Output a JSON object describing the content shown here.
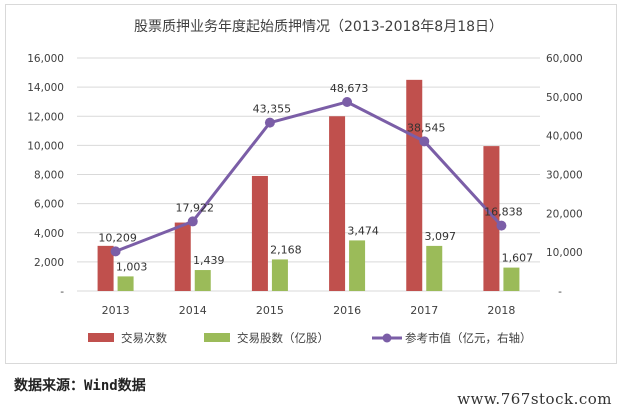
{
  "chart_data": {
    "type": "bar+line",
    "title": "股票质押业务年度起始质押情况（2013-2018年8月18日）",
    "categories": [
      "2013",
      "2014",
      "2015",
      "2016",
      "2017",
      "2018"
    ],
    "series": [
      {
        "name": "交易次数",
        "kind": "bar",
        "axis": "left",
        "color": "#c0504d",
        "values": [
          3100,
          4700,
          7900,
          12000,
          14500,
          9950
        ]
      },
      {
        "name": "交易股数（亿股）",
        "kind": "bar",
        "axis": "left",
        "color": "#9bbb59",
        "values": [
          1003,
          1439,
          2168,
          3474,
          3097,
          1607
        ],
        "labels": [
          "1,003",
          "1,439",
          "2,168",
          "3,474",
          "3,097",
          "1,607"
        ]
      },
      {
        "name": "参考市值（亿元，右轴）",
        "kind": "line",
        "axis": "right",
        "color": "#7b5ea7",
        "values": [
          10209,
          17922,
          43355,
          48673,
          38545,
          16838
        ],
        "labels": [
          "10,209",
          "17,922",
          "43,355",
          "48,673",
          "38,545",
          "16,838"
        ]
      }
    ],
    "y_left": {
      "lim": [
        0,
        16000
      ],
      "ticks": [
        "-",
        "2,000",
        "4,000",
        "6,000",
        "8,000",
        "10,000",
        "12,000",
        "14,000",
        "16,000"
      ]
    },
    "y_right": {
      "lim": [
        0,
        60000
      ],
      "ticks": [
        "-",
        "10,000",
        "20,000",
        "30,000",
        "40,000",
        "50,000",
        "60,000"
      ]
    },
    "grid": true,
    "legend_position": "bottom"
  },
  "source_note": "数据来源：Wind数据",
  "watermark": "www.767stock.com"
}
